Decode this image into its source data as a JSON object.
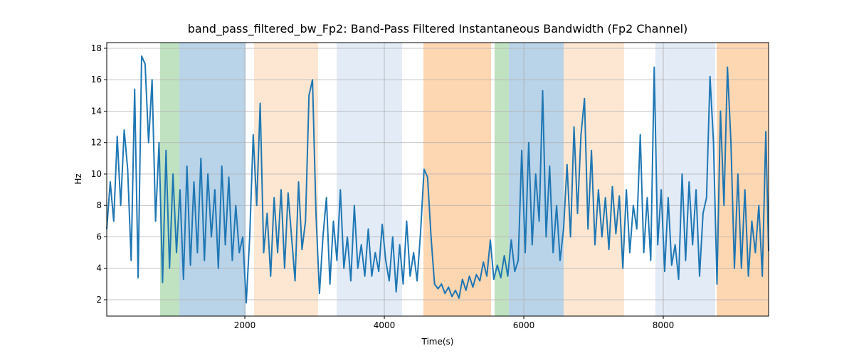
{
  "chart_data": {
    "type": "line",
    "title": "band_pass_filtered_bw_Fp2: Band-Pass Filtered Instantaneous Bandwidth (Fp2 Channel)",
    "xlabel": "Time(s)",
    "ylabel": "Hz",
    "xlim": [
      20,
      9510
    ],
    "ylim": [
      0.96,
      18.36
    ],
    "xticks": [
      2000,
      4000,
      6000,
      8000
    ],
    "yticks": [
      2,
      4,
      6,
      8,
      10,
      12,
      14,
      16,
      18
    ],
    "grid": true,
    "color": "#1f77b4",
    "spans": [
      {
        "start": 785,
        "end": 1061,
        "color": "#c0e2c0"
      },
      {
        "start": 1061,
        "end": 2010,
        "color": "#b9d3e8"
      },
      {
        "start": 2132,
        "end": 3050,
        "color": "#fde7d2"
      },
      {
        "start": 3316,
        "end": 4255,
        "color": "#e3ebf6"
      },
      {
        "start": 4561,
        "end": 5530,
        "color": "#fdd6b2"
      },
      {
        "start": 5581,
        "end": 5785,
        "color": "#c0e2c0"
      },
      {
        "start": 5785,
        "end": 6571,
        "color": "#b9d3e8"
      },
      {
        "start": 6571,
        "end": 7438,
        "color": "#fde7d2"
      },
      {
        "start": 7887,
        "end": 8744,
        "color": "#e3ebf6"
      },
      {
        "start": 8765,
        "end": 9510,
        "color": "#fdd6b2"
      }
    ],
    "x": [
      20,
      70,
      120,
      170,
      220,
      270,
      320,
      370,
      420,
      470,
      520,
      570,
      620,
      670,
      720,
      770,
      820,
      870,
      920,
      970,
      1020,
      1070,
      1120,
      1170,
      1220,
      1270,
      1320,
      1370,
      1420,
      1470,
      1520,
      1570,
      1620,
      1670,
      1720,
      1770,
      1820,
      1870,
      1920,
      1970,
      2020,
      2070,
      2120,
      2170,
      2220,
      2270,
      2320,
      2370,
      2420,
      2470,
      2520,
      2570,
      2620,
      2670,
      2720,
      2770,
      2820,
      2870,
      2920,
      2970,
      3020,
      3070,
      3120,
      3170,
      3220,
      3270,
      3320,
      3370,
      3420,
      3470,
      3520,
      3570,
      3620,
      3670,
      3720,
      3770,
      3820,
      3870,
      3920,
      3970,
      4020,
      4070,
      4120,
      4170,
      4220,
      4270,
      4320,
      4370,
      4420,
      4470,
      4520,
      4570,
      4620,
      4670,
      4720,
      4770,
      4820,
      4870,
      4920,
      4970,
      5020,
      5070,
      5120,
      5170,
      5220,
      5270,
      5320,
      5370,
      5420,
      5470,
      5520,
      5570,
      5620,
      5670,
      5720,
      5770,
      5820,
      5870,
      5920,
      5970,
      6020,
      6070,
      6120,
      6170,
      6220,
      6270,
      6320,
      6370,
      6420,
      6470,
      6520,
      6570,
      6620,
      6670,
      6720,
      6770,
      6820,
      6870,
      6920,
      6970,
      7020,
      7070,
      7120,
      7170,
      7220,
      7270,
      7320,
      7370,
      7420,
      7470,
      7520,
      7570,
      7620,
      7670,
      7720,
      7770,
      7820,
      7870,
      7920,
      7970,
      8020,
      8070,
      8120,
      8170,
      8220,
      8270,
      8320,
      8370,
      8420,
      8470,
      8520,
      8570,
      8620,
      8670,
      8720,
      8770,
      8820,
      8870,
      8920,
      8970,
      9020,
      9070,
      9120,
      9170,
      9220,
      9270,
      9320,
      9370,
      9420,
      9470,
      9510
    ],
    "values": [
      6.5,
      9.5,
      7,
      12.4,
      8,
      12.8,
      10.3,
      4.5,
      15.4,
      3.4,
      17.5,
      17,
      12,
      16,
      7,
      12,
      3.1,
      11.5,
      4,
      10,
      5,
      9,
      3.3,
      10.5,
      4.2,
      9.5,
      5,
      11,
      4.5,
      10,
      6,
      9,
      4,
      10.5,
      5.5,
      9.8,
      4.5,
      8,
      5,
      6,
      1.8,
      6,
      12.5,
      8,
      14.5,
      5,
      7.5,
      3.5,
      8.5,
      5,
      9,
      4,
      8.8,
      6,
      3.2,
      9.5,
      5.2,
      7,
      15,
      16,
      7.5,
      2.4,
      6,
      8.5,
      3,
      7,
      4.5,
      9,
      4,
      6,
      3.2,
      8,
      4,
      5.5,
      3.5,
      6.5,
      3.5,
      5,
      3.8,
      6.8,
      4.5,
      3.2,
      6,
      2.5,
      5.5,
      3,
      7,
      3.5,
      5,
      3.2,
      6.3,
      10.3,
      9.8,
      6,
      3,
      2.7,
      3,
      2.4,
      2.8,
      2.2,
      2.6,
      2.1,
      3.3,
      2.6,
      3.5,
      2.8,
      3.6,
      3.2,
      4.4,
      3.5,
      5.8,
      3.3,
      4.2,
      3.4,
      4.8,
      3.5,
      5.8,
      3.8,
      4.5,
      11.5,
      5,
      12,
      5.5,
      10,
      7,
      15.3,
      6,
      10.5,
      5,
      8,
      4.5,
      6.5,
      10.6,
      6,
      13,
      7.5,
      12.5,
      14.8,
      6.5,
      11.5,
      5.5,
      9,
      6,
      8.5,
      5.2,
      9.2,
      6.2,
      8.6,
      4,
      9,
      5,
      8,
      6.5,
      12.5,
      5,
      8.5,
      4.5,
      16.8,
      5.5,
      9,
      3.8,
      8.5,
      4.2,
      5.5,
      3.3,
      10,
      4.5,
      9.5,
      5.5,
      9,
      3.5,
      7.5,
      8.5,
      16.2,
      12,
      3,
      14,
      8,
      16.8,
      12,
      4,
      10,
      4,
      9,
      3.5,
      7,
      5,
      8,
      3.5,
      12.7,
      5.1
    ]
  }
}
